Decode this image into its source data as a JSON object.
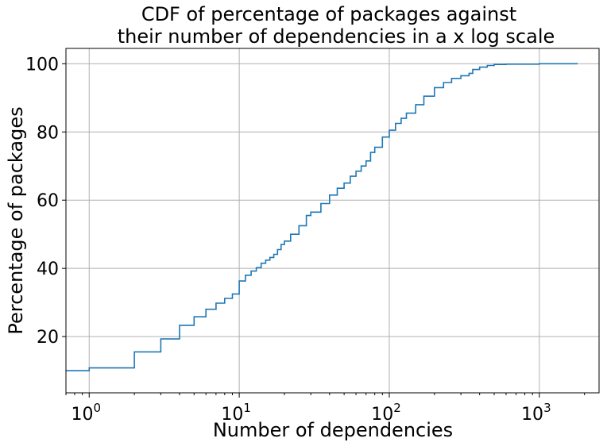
{
  "chart_data": {
    "type": "line",
    "title": [
      "CDF of percentage of packages against",
      "their number of dependencies in a x log scale"
    ],
    "xlabel": "Number of dependencies",
    "ylabel": "Percentage of packages",
    "xscale": "log",
    "xlim": [
      0.7,
      2500
    ],
    "ylim": [
      3.5,
      104.5
    ],
    "xticks": [
      {
        "value": 1,
        "base": "10",
        "exp": "0"
      },
      {
        "value": 10,
        "base": "10",
        "exp": "1"
      },
      {
        "value": 100,
        "base": "10",
        "exp": "2"
      },
      {
        "value": 1000,
        "base": "10",
        "exp": "3"
      }
    ],
    "yticks": [
      20,
      40,
      60,
      80,
      100
    ],
    "grid": true,
    "series": [
      {
        "color": "#1f77b4",
        "step": true,
        "x": [
          0.7,
          1,
          2,
          3,
          4,
          5,
          6,
          7,
          8,
          9,
          10,
          11,
          12,
          13,
          14,
          15,
          16,
          17,
          18,
          19,
          20,
          22,
          25,
          28,
          30,
          35,
          40,
          45,
          50,
          55,
          60,
          65,
          70,
          75,
          80,
          90,
          100,
          110,
          120,
          130,
          150,
          170,
          200,
          230,
          260,
          300,
          340,
          360,
          400,
          450,
          500,
          600,
          1000,
          1800
        ],
        "y": [
          10,
          10.8,
          15.5,
          19.3,
          23.3,
          25.8,
          28.0,
          29.8,
          31.2,
          32.5,
          36.3,
          38.0,
          39.2,
          40.2,
          41.5,
          42.4,
          43.2,
          44.1,
          45.5,
          47.0,
          48.0,
          50.0,
          52.5,
          55.5,
          56.5,
          59.0,
          61.5,
          63.5,
          65.0,
          67.0,
          68.5,
          70.0,
          71.5,
          74.0,
          75.5,
          78.5,
          80.5,
          82.5,
          84.0,
          85.5,
          88.0,
          90.5,
          93.0,
          94.5,
          95.7,
          96.5,
          97.2,
          98.3,
          99.0,
          99.5,
          99.8,
          99.9,
          100,
          100
        ]
      }
    ]
  }
}
